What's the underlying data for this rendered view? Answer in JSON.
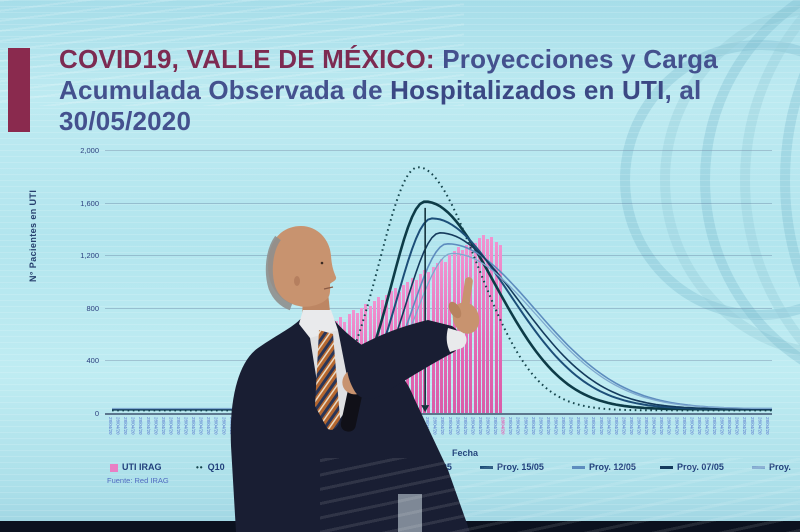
{
  "slide": {
    "title": {
      "segment_accent": "COVID19, VALLE DE MÉXICO:",
      "segment_rest_line1": " Proyecciones y Carga",
      "line2_prefix": "Acumulada Observada de ",
      "line2_bold": "Hospitalizados en UTI",
      "line2_suffix": ", al",
      "line3": "30/05/2020"
    },
    "source": "Fuente: Red IRAG"
  },
  "chart_data": {
    "type": "bar+line",
    "title": "",
    "xlabel": "Fecha",
    "ylabel": "N° Pacientes en UTI",
    "ylim": [
      0,
      2000
    ],
    "yticks": [
      "0",
      "400",
      "800",
      "1,200",
      "1,600",
      "2,000"
    ],
    "x_axis": {
      "tick_count": 88,
      "tick_label_sample": "28/04/20",
      "highlight_index": 52,
      "tick_color": "#4a67c8",
      "highlight_color": "#e068b8",
      "note": "dense daily date labels, rotated vertically, illegible at photo resolution"
    },
    "bars": {
      "name": "UTI IRAG",
      "color": "#e97fc4",
      "values": [
        700,
        730,
        690,
        750,
        780,
        760,
        800,
        830,
        810,
        850,
        880,
        860,
        900,
        930,
        950,
        920,
        970,
        1000,
        1030,
        1010,
        1060,
        1090,
        1070,
        1110,
        1140,
        1170,
        1150,
        1200,
        1230,
        1260,
        1240,
        1280,
        1310,
        1290,
        1330,
        1350,
        1320,
        1340,
        1300,
        1280
      ]
    },
    "series": [
      {
        "name": "Q10",
        "dashed": true,
        "color": "#15444c",
        "width": 2,
        "peak": 1850,
        "peak_frac": 0.469,
        "sl_frac": 0.058,
        "sr_frac": 0.088,
        "base": 20
      },
      {
        "name": "Proy. 21/05",
        "dashed": false,
        "color": "#0d3b47",
        "width": 2.6,
        "peak": 1580,
        "peak_frac": 0.48,
        "sl_frac": 0.05,
        "sr_frac": 0.104,
        "base": 28
      },
      {
        "name": "Proy. 15/05",
        "dashed": false,
        "color": "#1c4e78",
        "width": 2,
        "peak": 1450,
        "peak_frac": 0.49,
        "sl_frac": 0.05,
        "sr_frac": 0.116,
        "base": 30
      },
      {
        "name": "Proy. 12/05",
        "dashed": false,
        "color": "#5d8cbe",
        "width": 1.6,
        "peak": 1255,
        "peak_frac": 0.513,
        "sl_frac": 0.052,
        "sr_frac": 0.131,
        "base": 32
      },
      {
        "name": "Proy. 07/05",
        "dashed": false,
        "color": "#143a5c",
        "width": 1.6,
        "peak": 1340,
        "peak_frac": 0.502,
        "sl_frac": 0.05,
        "sr_frac": 0.12,
        "base": 30
      },
      {
        "name": "Proy.",
        "dashed": false,
        "color": "#7fa8cf",
        "width": 1.3,
        "peak": 1180,
        "peak_frac": 0.52,
        "sl_frac": 0.054,
        "sr_frac": 0.126,
        "base": 34
      }
    ],
    "annotation_arrow": {
      "x_frac": 0.48,
      "from_value": 1560,
      "to_value": 60
    },
    "legend_position": "bottom"
  },
  "legend": {
    "items": [
      {
        "label": "UTI IRAG",
        "swatch": "bar",
        "color": "#e97fc4"
      },
      {
        "label": "Q10",
        "swatch": "dotted",
        "color": "#15444c"
      },
      {
        "label": "Proy. 21/05",
        "swatch": "line",
        "color": "#0d3b47"
      },
      {
        "label": "Proy. 15/05",
        "swatch": "line",
        "color": "#1c4e78"
      },
      {
        "label": "Proy. 12/05",
        "swatch": "line",
        "color": "#5d8cbe"
      },
      {
        "label": "Proy. 07/05",
        "swatch": "line",
        "color": "#143a5c"
      },
      {
        "label": "Proy.",
        "swatch": "line",
        "color": "#7fa8cf"
      }
    ]
  }
}
